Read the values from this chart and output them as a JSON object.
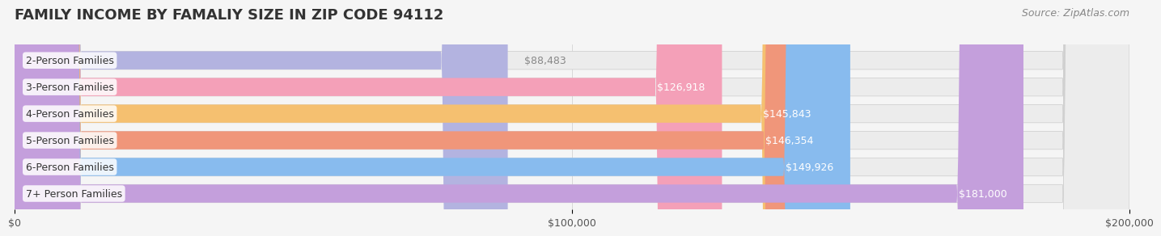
{
  "title": "FAMILY INCOME BY FAMALIY SIZE IN ZIP CODE 94112",
  "source": "Source: ZipAtlas.com",
  "categories": [
    "2-Person Families",
    "3-Person Families",
    "4-Person Families",
    "5-Person Families",
    "6-Person Families",
    "7+ Person Families"
  ],
  "values": [
    88483,
    126918,
    145843,
    146354,
    149926,
    181000
  ],
  "bar_colors": [
    "#b3b3e0",
    "#f4a0b8",
    "#f5c070",
    "#f0967a",
    "#88bbee",
    "#c49fdc"
  ],
  "bar_label_colors": [
    "#888888",
    "#ffffff",
    "#ffffff",
    "#ffffff",
    "#ffffff",
    "#ffffff"
  ],
  "label_colors": [
    "#555577",
    "#cc6688",
    "#cc8833",
    "#cc7755",
    "#5588bb",
    "#8855aa"
  ],
  "value_labels": [
    "$88,483",
    "$126,918",
    "$145,843",
    "$146,354",
    "$149,926",
    "$181,000"
  ],
  "xlim": [
    0,
    200000
  ],
  "xticks": [
    0,
    100000,
    200000
  ],
  "xtick_labels": [
    "$0",
    "$100,000",
    "$200,000"
  ],
  "background_color": "#f5f5f5",
  "bar_bg_color": "#ececec",
  "title_fontsize": 13,
  "source_fontsize": 9,
  "label_fontsize": 9,
  "value_fontsize": 9
}
